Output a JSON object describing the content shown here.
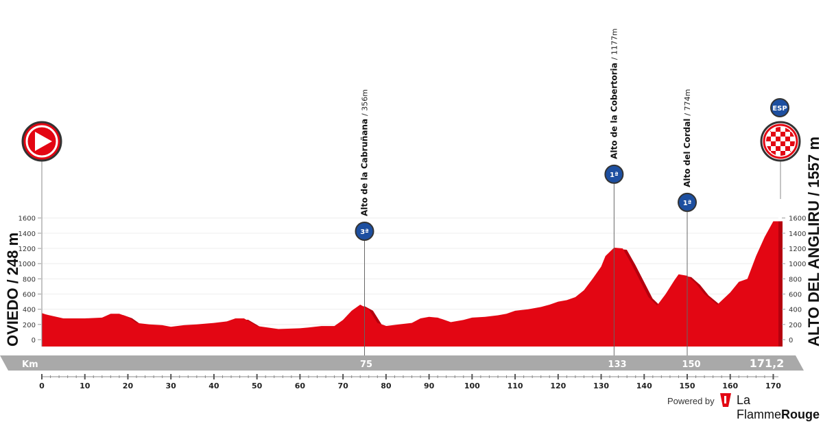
{
  "chart_data": {
    "type": "area",
    "x_unit": "Km",
    "xlim": [
      0,
      171.2
    ],
    "ylim": [
      0,
      1700
    ],
    "y_ticks": [
      0,
      200,
      400,
      600,
      800,
      1000,
      1200,
      1400,
      1600
    ],
    "x_ticks": [
      0,
      10,
      20,
      30,
      40,
      50,
      60,
      70,
      80,
      90,
      100,
      110,
      120,
      130,
      140,
      150,
      160,
      170
    ],
    "key_km": [
      "75",
      "133",
      "150"
    ],
    "finish_km_label": "171,2",
    "band_label": "Km",
    "profile": {
      "x": [
        0,
        1,
        5,
        10,
        14,
        16,
        18,
        20,
        22,
        25,
        28,
        30,
        33,
        36,
        40,
        43,
        45,
        47,
        50,
        55,
        60,
        62,
        65,
        68,
        70,
        72,
        74,
        76,
        78,
        80,
        83,
        86,
        88,
        90,
        92,
        95,
        98,
        100,
        103,
        106,
        108,
        110,
        113,
        116,
        118,
        120,
        122,
        124,
        126,
        128,
        130,
        131,
        133,
        135,
        137,
        139,
        141,
        143,
        145,
        147,
        148,
        150,
        152,
        154,
        157,
        160,
        162,
        164,
        166,
        168,
        170,
        171.2
      ],
      "y": [
        350,
        330,
        280,
        280,
        290,
        340,
        340,
        300,
        220,
        200,
        190,
        170,
        190,
        200,
        220,
        240,
        280,
        280,
        180,
        140,
        150,
        160,
        180,
        180,
        260,
        380,
        460,
        400,
        220,
        180,
        200,
        220,
        280,
        300,
        290,
        230,
        260,
        290,
        300,
        320,
        340,
        380,
        400,
        430,
        460,
        500,
        520,
        560,
        650,
        800,
        960,
        1100,
        1210,
        1200,
        1000,
        780,
        560,
        450,
        600,
        780,
        860,
        840,
        740,
        600,
        460,
        620,
        760,
        800,
        1100,
        1350,
        1557,
        1557
      ]
    },
    "climbs": [
      {
        "km": 75,
        "elev": 460,
        "name": "Alto de la Cabruñana",
        "alt": "/ 356m",
        "category": "3ª"
      },
      {
        "km": 133,
        "elev": 1210,
        "name": "Alto de la Cobertoria",
        "alt": "/ 1177m",
        "category": "1ª"
      },
      {
        "km": 150,
        "elev": 840,
        "name": "Alto del Cordal",
        "alt": "/ 774m",
        "category": "1ª"
      }
    ],
    "start": {
      "name": "OVIEDO",
      "elevation": "/ 248 m"
    },
    "finish": {
      "name": "ALTO DEL ANGLIRU",
      "elevation": "/ 1557 m",
      "badge": "ESP"
    },
    "colors": {
      "profile": "#e30613",
      "profile_dark": "#b5000e",
      "band": "#a9a9a9",
      "climb_icon": "#1d4fa0"
    }
  },
  "footer": {
    "powered_by": "Powered by",
    "brand_part1": "La Flamme",
    "brand_part2": "Rouge"
  }
}
